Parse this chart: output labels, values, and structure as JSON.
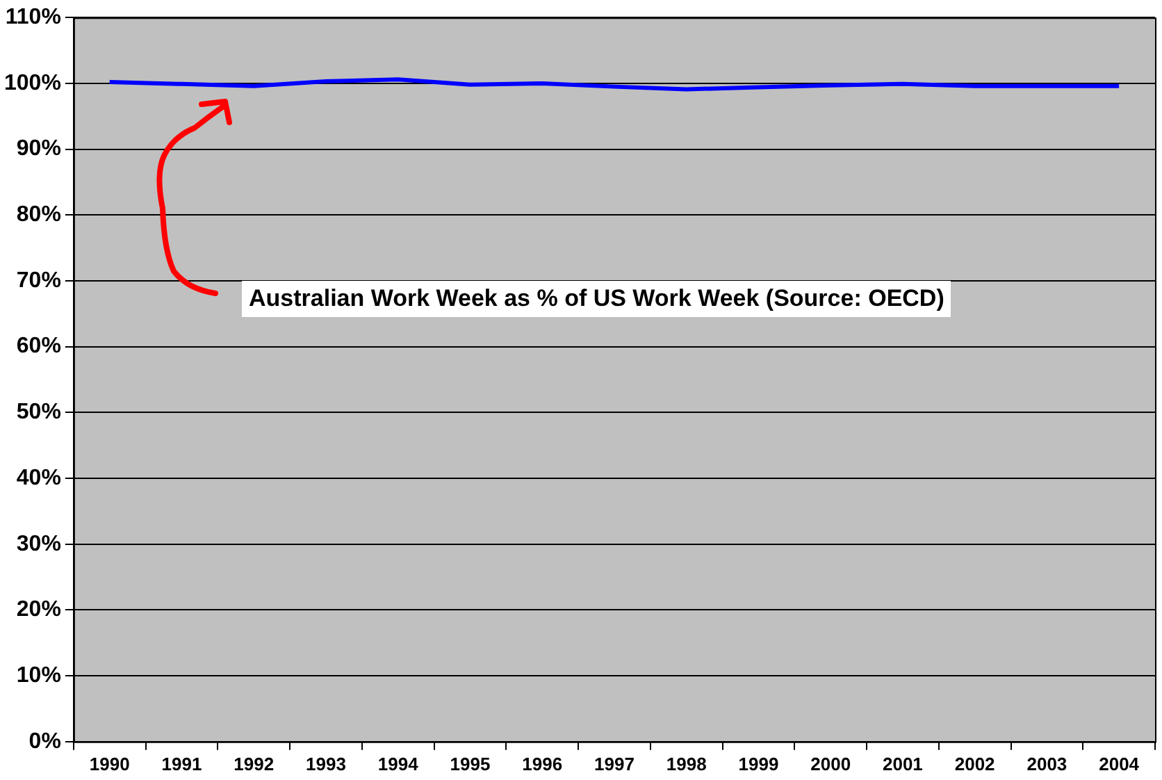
{
  "chart_data": {
    "type": "line",
    "categories": [
      "1990",
      "1991",
      "1992",
      "1993",
      "1994",
      "1995",
      "1996",
      "1997",
      "1998",
      "1999",
      "2000",
      "2001",
      "2002",
      "2003",
      "2004"
    ],
    "series": [
      {
        "color": "#0000ff",
        "values": [
          100.2,
          99.9,
          99.6,
          100.3,
          100.6,
          99.8,
          100.0,
          99.5,
          99.1,
          99.4,
          99.7,
          99.9,
          99.6,
          99.6,
          99.6
        ]
      }
    ],
    "ylim": [
      0,
      110
    ],
    "yticks": [
      {
        "value": 0,
        "label": "0%"
      },
      {
        "value": 10,
        "label": "10%"
      },
      {
        "value": 20,
        "label": "20%"
      },
      {
        "value": 30,
        "label": "30%"
      },
      {
        "value": 40,
        "label": "40%"
      },
      {
        "value": 50,
        "label": "50%"
      },
      {
        "value": 60,
        "label": "60%"
      },
      {
        "value": 70,
        "label": "70%"
      },
      {
        "value": 80,
        "label": "80%"
      },
      {
        "value": 90,
        "label": "90%"
      },
      {
        "value": 100,
        "label": "100%"
      },
      {
        "value": 110,
        "label": "110%"
      }
    ],
    "grid": "y",
    "legend": false,
    "marker": "none",
    "line_style": "solid",
    "annotations": [
      "Australian Work Week as % of US Work Week (Source: OECD)"
    ]
  }
}
